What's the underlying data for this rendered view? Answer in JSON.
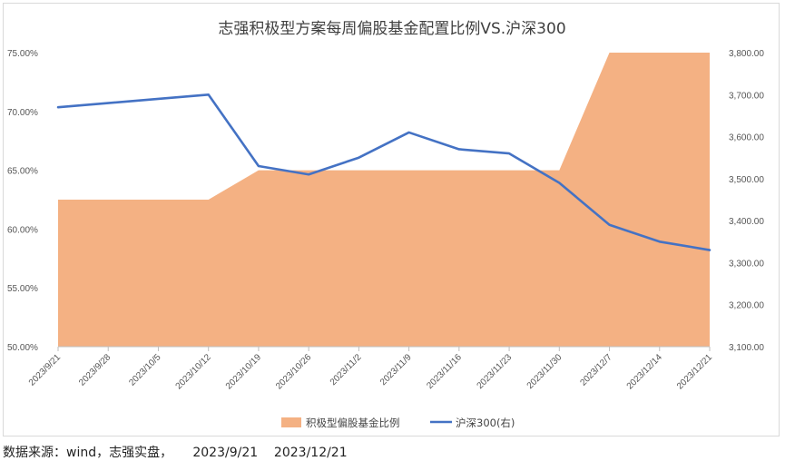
{
  "chart_data": {
    "type": "area+line",
    "title": "志强积极型方案每周偏股基金配置比例VS.沪深300",
    "categories": [
      "2023/9/21",
      "2023/9/28",
      "2023/10/5",
      "2023/10/12",
      "2023/10/19",
      "2023/10/26",
      "2023/11/2",
      "2023/11/9",
      "2023/11/16",
      "2023/11/23",
      "2023/11/30",
      "2023/12/7",
      "2023/12/14",
      "2023/12/21"
    ],
    "series": [
      {
        "name": "积极型偏股基金比例",
        "type": "area",
        "axis": "left",
        "color": "#f4b183",
        "values": [
          62.5,
          62.5,
          62.5,
          62.5,
          65.0,
          65.0,
          65.0,
          65.0,
          65.0,
          65.0,
          65.0,
          75.0,
          75.0,
          75.0
        ]
      },
      {
        "name": "沪深300(右)",
        "type": "line",
        "axis": "right",
        "color": "#4472c4",
        "values": [
          3670,
          3680,
          3690,
          3700,
          3530,
          3510,
          3550,
          3610,
          3570,
          3560,
          3490,
          3390,
          3350,
          3330
        ]
      }
    ],
    "y_left": {
      "min": 50,
      "max": 75,
      "step": 5,
      "tick_labels": [
        "50.00%",
        "55.00%",
        "60.00%",
        "65.00%",
        "70.00%",
        "75.00%"
      ]
    },
    "y_right": {
      "min": 3100,
      "max": 3800,
      "step": 100,
      "tick_labels": [
        "3,100.00",
        "3,200.00",
        "3,300.00",
        "3,400.00",
        "3,500.00",
        "3,600.00",
        "3,700.00",
        "3,800.00"
      ]
    },
    "grid": false,
    "legend_position": "bottom"
  },
  "footer": "数据来源：wind，志强实盘，     2023/9/21    2023/12/21"
}
